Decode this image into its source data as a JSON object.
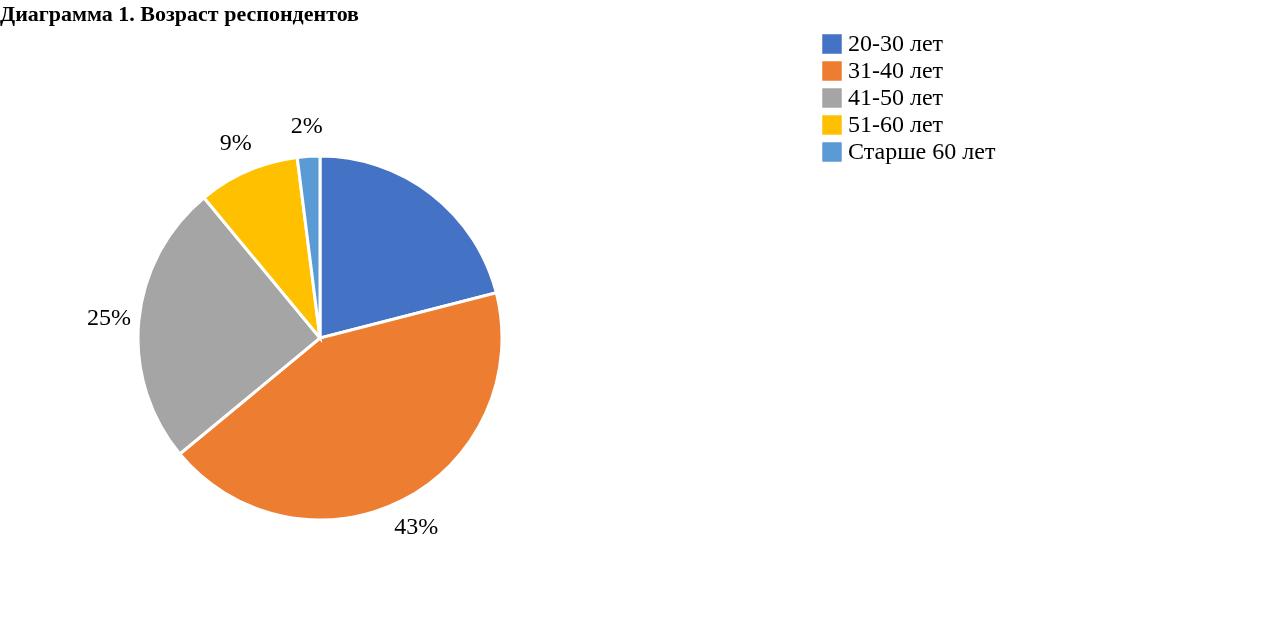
{
  "chart_data": {
    "type": "pie",
    "title": "Диаграмма 1. Возраст респондентов",
    "categories": [
      "20-30 лет",
      "31-40 лет",
      "41-50 лет",
      "51-60 лет",
      "Старше 60 лет"
    ],
    "values": [
      21,
      43,
      25,
      9,
      2
    ],
    "value_labels": [
      null,
      "43%",
      "25%",
      "9%",
      "2%"
    ],
    "colors": [
      "#4472c4",
      "#ed7d31",
      "#a5a5a5",
      "#ffc000",
      "#5b9bd5"
    ],
    "legend": "top right"
  }
}
